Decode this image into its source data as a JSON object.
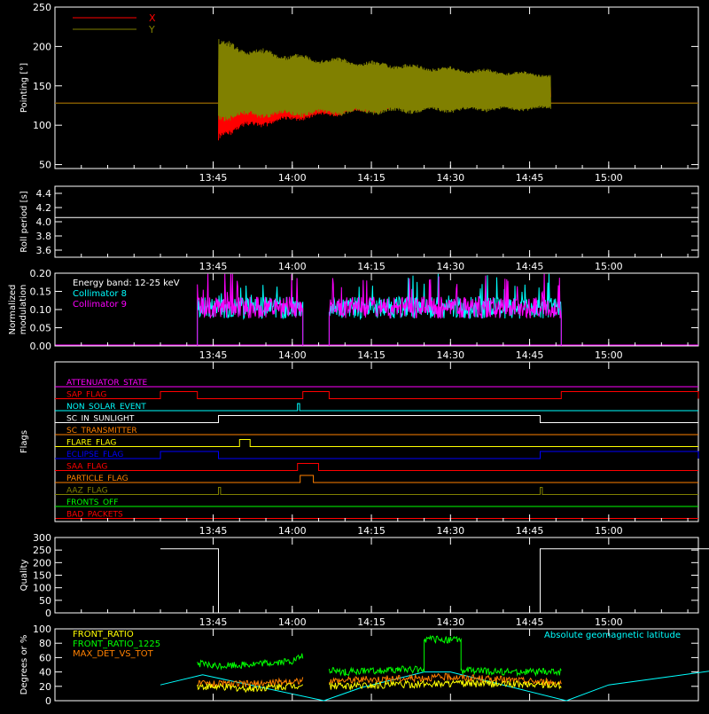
{
  "chart_data": [
    {
      "type": "line",
      "ylabel": "Pointing [°]",
      "ylim": [
        45,
        250
      ],
      "yticks": [
        50,
        100,
        150,
        200,
        250
      ],
      "xticks": [
        "13:45",
        "14:00",
        "14:15",
        "14:30",
        "14:45",
        "15:00"
      ],
      "xlim_minutes": [
        -45,
        77
      ],
      "legend": [
        {
          "name": "X",
          "color": "#ff0000"
        },
        {
          "name": "Y",
          "color": "#808000"
        }
      ],
      "series": [
        {
          "name": "X",
          "color": "#ff0000",
          "baseline": 128,
          "active_from": "13:46",
          "active_to": "14:49",
          "envelope_start": [
            80,
            185
          ],
          "envelope_end": [
            135,
            152
          ]
        },
        {
          "name": "Y",
          "color": "#808000",
          "baseline": 128,
          "active_from": "13:46",
          "active_to": "14:49",
          "envelope_start": [
            105,
            212
          ],
          "envelope_end": [
            120,
            165
          ]
        }
      ]
    },
    {
      "type": "line",
      "ylabel": "Roll period [s]",
      "ylim": [
        3.5,
        4.5
      ],
      "yticks": [
        "3.6",
        "3.8",
        "4.0",
        "4.2",
        "4.4"
      ],
      "xticks": [
        "13:45",
        "14:00",
        "14:15",
        "14:30",
        "14:45",
        "15:00"
      ],
      "series": [
        {
          "name": "",
          "color": "#ffffff",
          "value": 4.06
        }
      ]
    },
    {
      "type": "line",
      "ylabel": "Normalized modulation",
      "ylim": [
        0,
        0.2
      ],
      "yticks": [
        "0.00",
        "0.05",
        "0.10",
        "0.15",
        "0.20"
      ],
      "xticks": [
        "13:45",
        "14:00",
        "14:15",
        "14:30",
        "14:45",
        "15:00"
      ],
      "annotation": "Energy band: 12-25 keV",
      "legend": [
        {
          "name": "Collimator 8",
          "color": "#00ffff"
        },
        {
          "name": "Collimator 9",
          "color": "#ff00ff"
        }
      ],
      "series": [
        {
          "name": "Collimator 8",
          "color": "#00ffff",
          "mean": 0.105,
          "segments": [
            [
              "13:42",
              "14:02"
            ],
            [
              "14:07",
              "14:51"
            ]
          ]
        },
        {
          "name": "Collimator 9",
          "color": "#ff00ff",
          "mean": 0.105,
          "segments": [
            [
              "13:42",
              "14:02"
            ],
            [
              "14:07",
              "14:51"
            ]
          ]
        }
      ]
    },
    {
      "type": "line",
      "ylabel": "Flags",
      "xticks": [
        "13:45",
        "14:00",
        "14:15",
        "14:30",
        "14:45",
        "15:00"
      ],
      "flags": [
        {
          "name": "ATTENUATOR_STATE",
          "color": "#ff00ff",
          "high": []
        },
        {
          "name": "SAP_FLAG",
          "color": "#ff0000",
          "high": [
            [
              "13:35",
              "13:42"
            ],
            [
              "14:02",
              "14:07"
            ],
            [
              "14:51",
              "15:20"
            ]
          ]
        },
        {
          "name": "NON_SOLAR_EVENT",
          "color": "#00ffff",
          "high": [
            [
              "14:01",
              "14:01.4"
            ]
          ]
        },
        {
          "name": "SC_IN_SUNLIGHT",
          "color": "#ffffff",
          "high": [
            [
              "13:46",
              "14:47"
            ]
          ]
        },
        {
          "name": "SC_TRANSMITTER",
          "color": "#ff8000",
          "high": []
        },
        {
          "name": "FLARE_FLAG",
          "color": "#ffff00",
          "high": [
            [
              "13:50",
              "13:52"
            ]
          ]
        },
        {
          "name": "ECLIPSE_FLAG",
          "color": "#0000ff",
          "high": [
            [
              "13:35",
              "13:46"
            ],
            [
              "14:47",
              "15:20"
            ]
          ]
        },
        {
          "name": "SAA_FLAG",
          "color": "#ff0000",
          "high": [
            [
              "14:01",
              "14:05"
            ]
          ]
        },
        {
          "name": "PARTICLE_FLAG",
          "color": "#ff8000",
          "high": [
            [
              "14:01.5",
              "14:04"
            ]
          ]
        },
        {
          "name": "AAZ_FLAG",
          "color": "#808000",
          "high": [
            [
              "13:46",
              "13:46.4"
            ],
            [
              "14:47",
              "14:47.4"
            ]
          ]
        },
        {
          "name": "FRONTS_OFF",
          "color": "#00ff00",
          "high": []
        },
        {
          "name": "BAD_PACKETS",
          "color": "#ff0000",
          "high": []
        }
      ]
    },
    {
      "type": "line",
      "ylabel": "Quality",
      "ylim": [
        0,
        300
      ],
      "yticks": [
        "0",
        "50",
        "100",
        "150",
        "200",
        "250",
        "300"
      ],
      "xticks": [
        "13:45",
        "14:00",
        "14:15",
        "14:30",
        "14:45",
        "15:00"
      ],
      "series": [
        {
          "name": "",
          "color": "#ffffff",
          "x": [
            "13:35",
            "13:46",
            "13:46",
            "14:47",
            "14:47",
            "15:20"
          ],
          "y": [
            255,
            255,
            0,
            0,
            255,
            255
          ]
        }
      ]
    },
    {
      "type": "line",
      "ylabel": "Degrees or %",
      "ylim": [
        0,
        100
      ],
      "yticks": [
        "0",
        "20",
        "40",
        "60",
        "80",
        "100"
      ],
      "xticks": [
        "13:45",
        "14:00",
        "14:15",
        "14:30",
        "14:45",
        "15:00"
      ],
      "legend": [
        {
          "name": "FRONT_RATIO",
          "color": "#ffff00"
        },
        {
          "name": "FRONT_RATIO_1225",
          "color": "#00ff00"
        },
        {
          "name": "MAX_DET_VS_TOT",
          "color": "#ff8000"
        },
        {
          "name": "Absolute geomagnetic latitude",
          "color": "#00ffff"
        }
      ],
      "series": [
        {
          "name": "Absolute geomagnetic latitude",
          "color": "#00ffff",
          "x": [
            "13:35",
            "13:43",
            "14:06",
            "14:13",
            "14:25",
            "14:30",
            "14:52",
            "15:00",
            "15:20"
          ],
          "y": [
            22,
            36,
            0,
            18,
            40,
            40,
            0,
            22,
            42
          ]
        },
        {
          "name": "FRONT_RATIO_1225",
          "color": "#00ff00",
          "segments": [
            {
              "x": [
                "13:42",
                "13:45",
                "13:55",
                "14:00",
                "14:02"
              ],
              "y": [
                52,
                48,
                52,
                55,
                62
              ]
            },
            {
              "x": [
                "14:07",
                "14:10",
                "14:20",
                "14:25",
                "14:25",
                "14:32",
                "14:32",
                "14:40",
                "14:51"
              ],
              "y": [
                42,
                40,
                43,
                44,
                85,
                85,
                42,
                40,
                40
              ]
            }
          ]
        },
        {
          "name": "MAX_DET_VS_TOT",
          "color": "#ff8000",
          "segments": [
            {
              "x": [
                "13:42",
                "13:52",
                "14:02"
              ],
              "y": [
                24,
                23,
                28
              ]
            },
            {
              "x": [
                "14:07",
                "14:30",
                "14:51"
              ],
              "y": [
                28,
                33,
                25
              ]
            }
          ]
        },
        {
          "name": "FRONT_RATIO",
          "color": "#ffff00",
          "segments": [
            {
              "x": [
                "13:42",
                "13:52",
                "14:02"
              ],
              "y": [
                20,
                17,
                22
              ]
            },
            {
              "x": [
                "14:07",
                "14:30",
                "14:51"
              ],
              "y": [
                20,
                24,
                22
              ]
            }
          ]
        }
      ]
    }
  ]
}
